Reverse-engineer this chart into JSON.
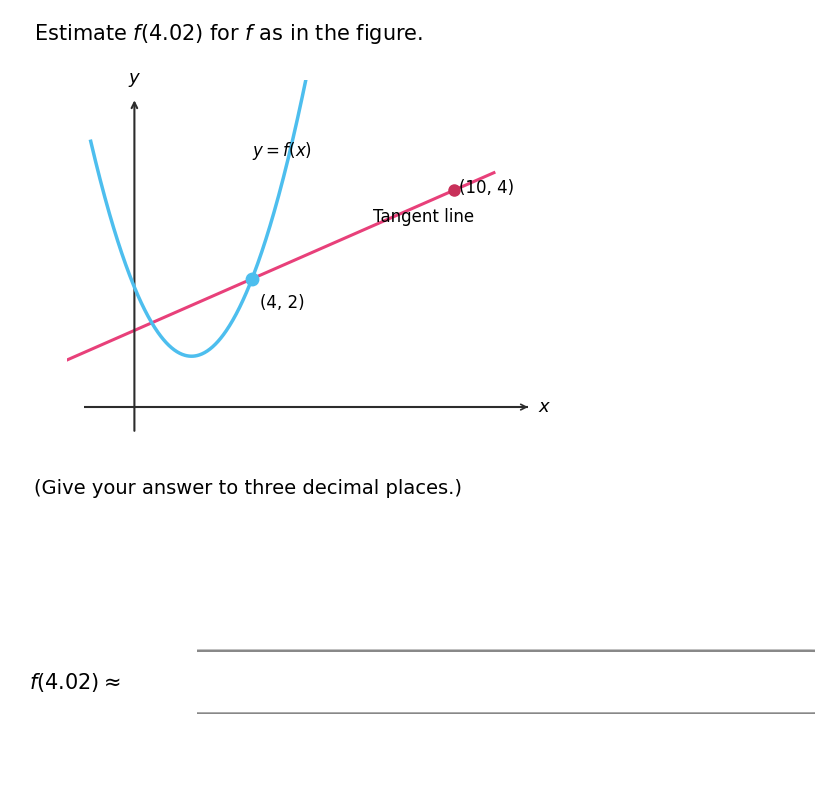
{
  "title_text": "Estimate $f(4.02)$ for $f$ as in the figure.",
  "title_fontsize": 15,
  "curve_color": "#4DBEEE",
  "tangent_color": "#E8407A",
  "tangent_point": [
    4,
    2
  ],
  "tangent_point2": [
    10,
    4
  ],
  "tangent_label_pt": "(4, 2)",
  "tangent_label_pt2": "(10, 4)",
  "tangent_label": "Tangent line",
  "curve_label": "$y = f(x)$",
  "axis_color": "#2c2c2c",
  "dot_color": "#4DBEEE",
  "dot2_color": "#C8305A",
  "xlabel": "$x$",
  "ylabel": "$y$",
  "instruction_text": "(Give your answer to three decimal places.)",
  "answer_label": "$f(4.02) \\approx$",
  "background_color": "#ffffff",
  "curve_a": 0.54,
  "curve_b": 2.2,
  "curve_c": 0.25,
  "slope": 0.3333,
  "intercept": 0.6667
}
